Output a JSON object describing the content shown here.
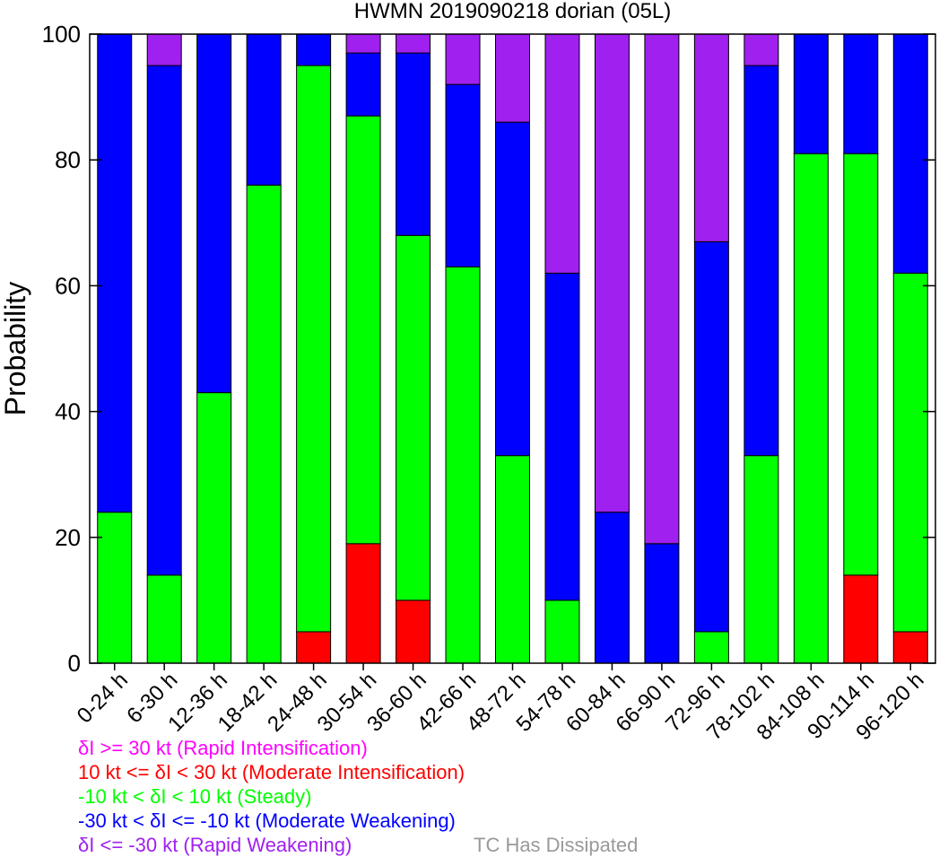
{
  "chart_data": {
    "type": "bar",
    "stacked": true,
    "title": "HWMN 2019090218 dorian (05L)",
    "xlabel": "",
    "ylabel": "Probability",
    "ylim": [
      0,
      100
    ],
    "yticks": [
      0,
      20,
      40,
      60,
      80,
      100
    ],
    "grid": false,
    "categories": [
      "0-24 h",
      "6-30 h",
      "12-36 h",
      "18-42 h",
      "24-48 h",
      "30-54 h",
      "36-60 h",
      "42-66 h",
      "48-72 h",
      "54-78 h",
      "60-84 h",
      "66-90 h",
      "72-96 h",
      "78-102 h",
      "84-108 h",
      "90-114 h",
      "96-120 h"
    ],
    "series": [
      {
        "name": "δI >= 30 kt (Rapid Intensification)",
        "color": "#ff00ff",
        "values": [
          0,
          0,
          0,
          0,
          0,
          0,
          0,
          0,
          0,
          0,
          0,
          0,
          0,
          0,
          0,
          0,
          0
        ]
      },
      {
        "name": "10 kt <= δI < 30 kt (Moderate Intensification)",
        "color": "#ff0000",
        "values": [
          0,
          0,
          0,
          0,
          5,
          19,
          10,
          0,
          0,
          0,
          0,
          0,
          0,
          0,
          0,
          14,
          5
        ]
      },
      {
        "name": "-10 kt < δI < 10 kt (Steady)",
        "color": "#00ff00",
        "values": [
          24,
          14,
          43,
          76,
          90,
          68,
          58,
          63,
          33,
          10,
          0,
          0,
          5,
          33,
          81,
          67,
          57
        ]
      },
      {
        "name": "-30 kt < δI <= -10 kt (Moderate Weakening)",
        "color": "#0000ff",
        "values": [
          76,
          81,
          57,
          24,
          5,
          10,
          29,
          29,
          53,
          52,
          24,
          19,
          62,
          62,
          19,
          19,
          38
        ]
      },
      {
        "name": "δI <= -30 kt (Rapid Weakening)",
        "color": "#a020f0",
        "values": [
          0,
          5,
          0,
          0,
          0,
          3,
          3,
          8,
          14,
          38,
          76,
          81,
          33,
          5,
          0,
          0,
          0
        ]
      },
      {
        "name": "TC Has Dissipated",
        "color": "#999999",
        "values": [
          0,
          0,
          0,
          0,
          0,
          0,
          0,
          0,
          0,
          0,
          0,
          0,
          0,
          0,
          0,
          0,
          0
        ]
      }
    ],
    "legend": {
      "placement": "bottom-left",
      "entries": [
        {
          "segments": [
            {
              "text": "δI >= 30 kt (Rapid Intensification)",
              "color": "#ff00ff"
            }
          ]
        },
        {
          "segments": [
            {
              "text": "10 kt <= δI < 30 kt (Moderate Intensification)",
              "color": "#ff0000"
            }
          ]
        },
        {
          "segments": [
            {
              "text": "-10 kt < δI < 10 kt (Steady)",
              "color": "#00ff00"
            }
          ]
        },
        {
          "segments": [
            {
              "text": "-30 kt < δI <= -10 kt (Moderate Weakening)",
              "color": "#0000ff"
            }
          ]
        },
        {
          "segments": [
            {
              "text": "δI <= -30 kt (Rapid Weakening)",
              "color": "#a020f0"
            },
            {
              "text": "TC Has Dissipated",
              "color": "#999999"
            }
          ]
        }
      ]
    }
  }
}
